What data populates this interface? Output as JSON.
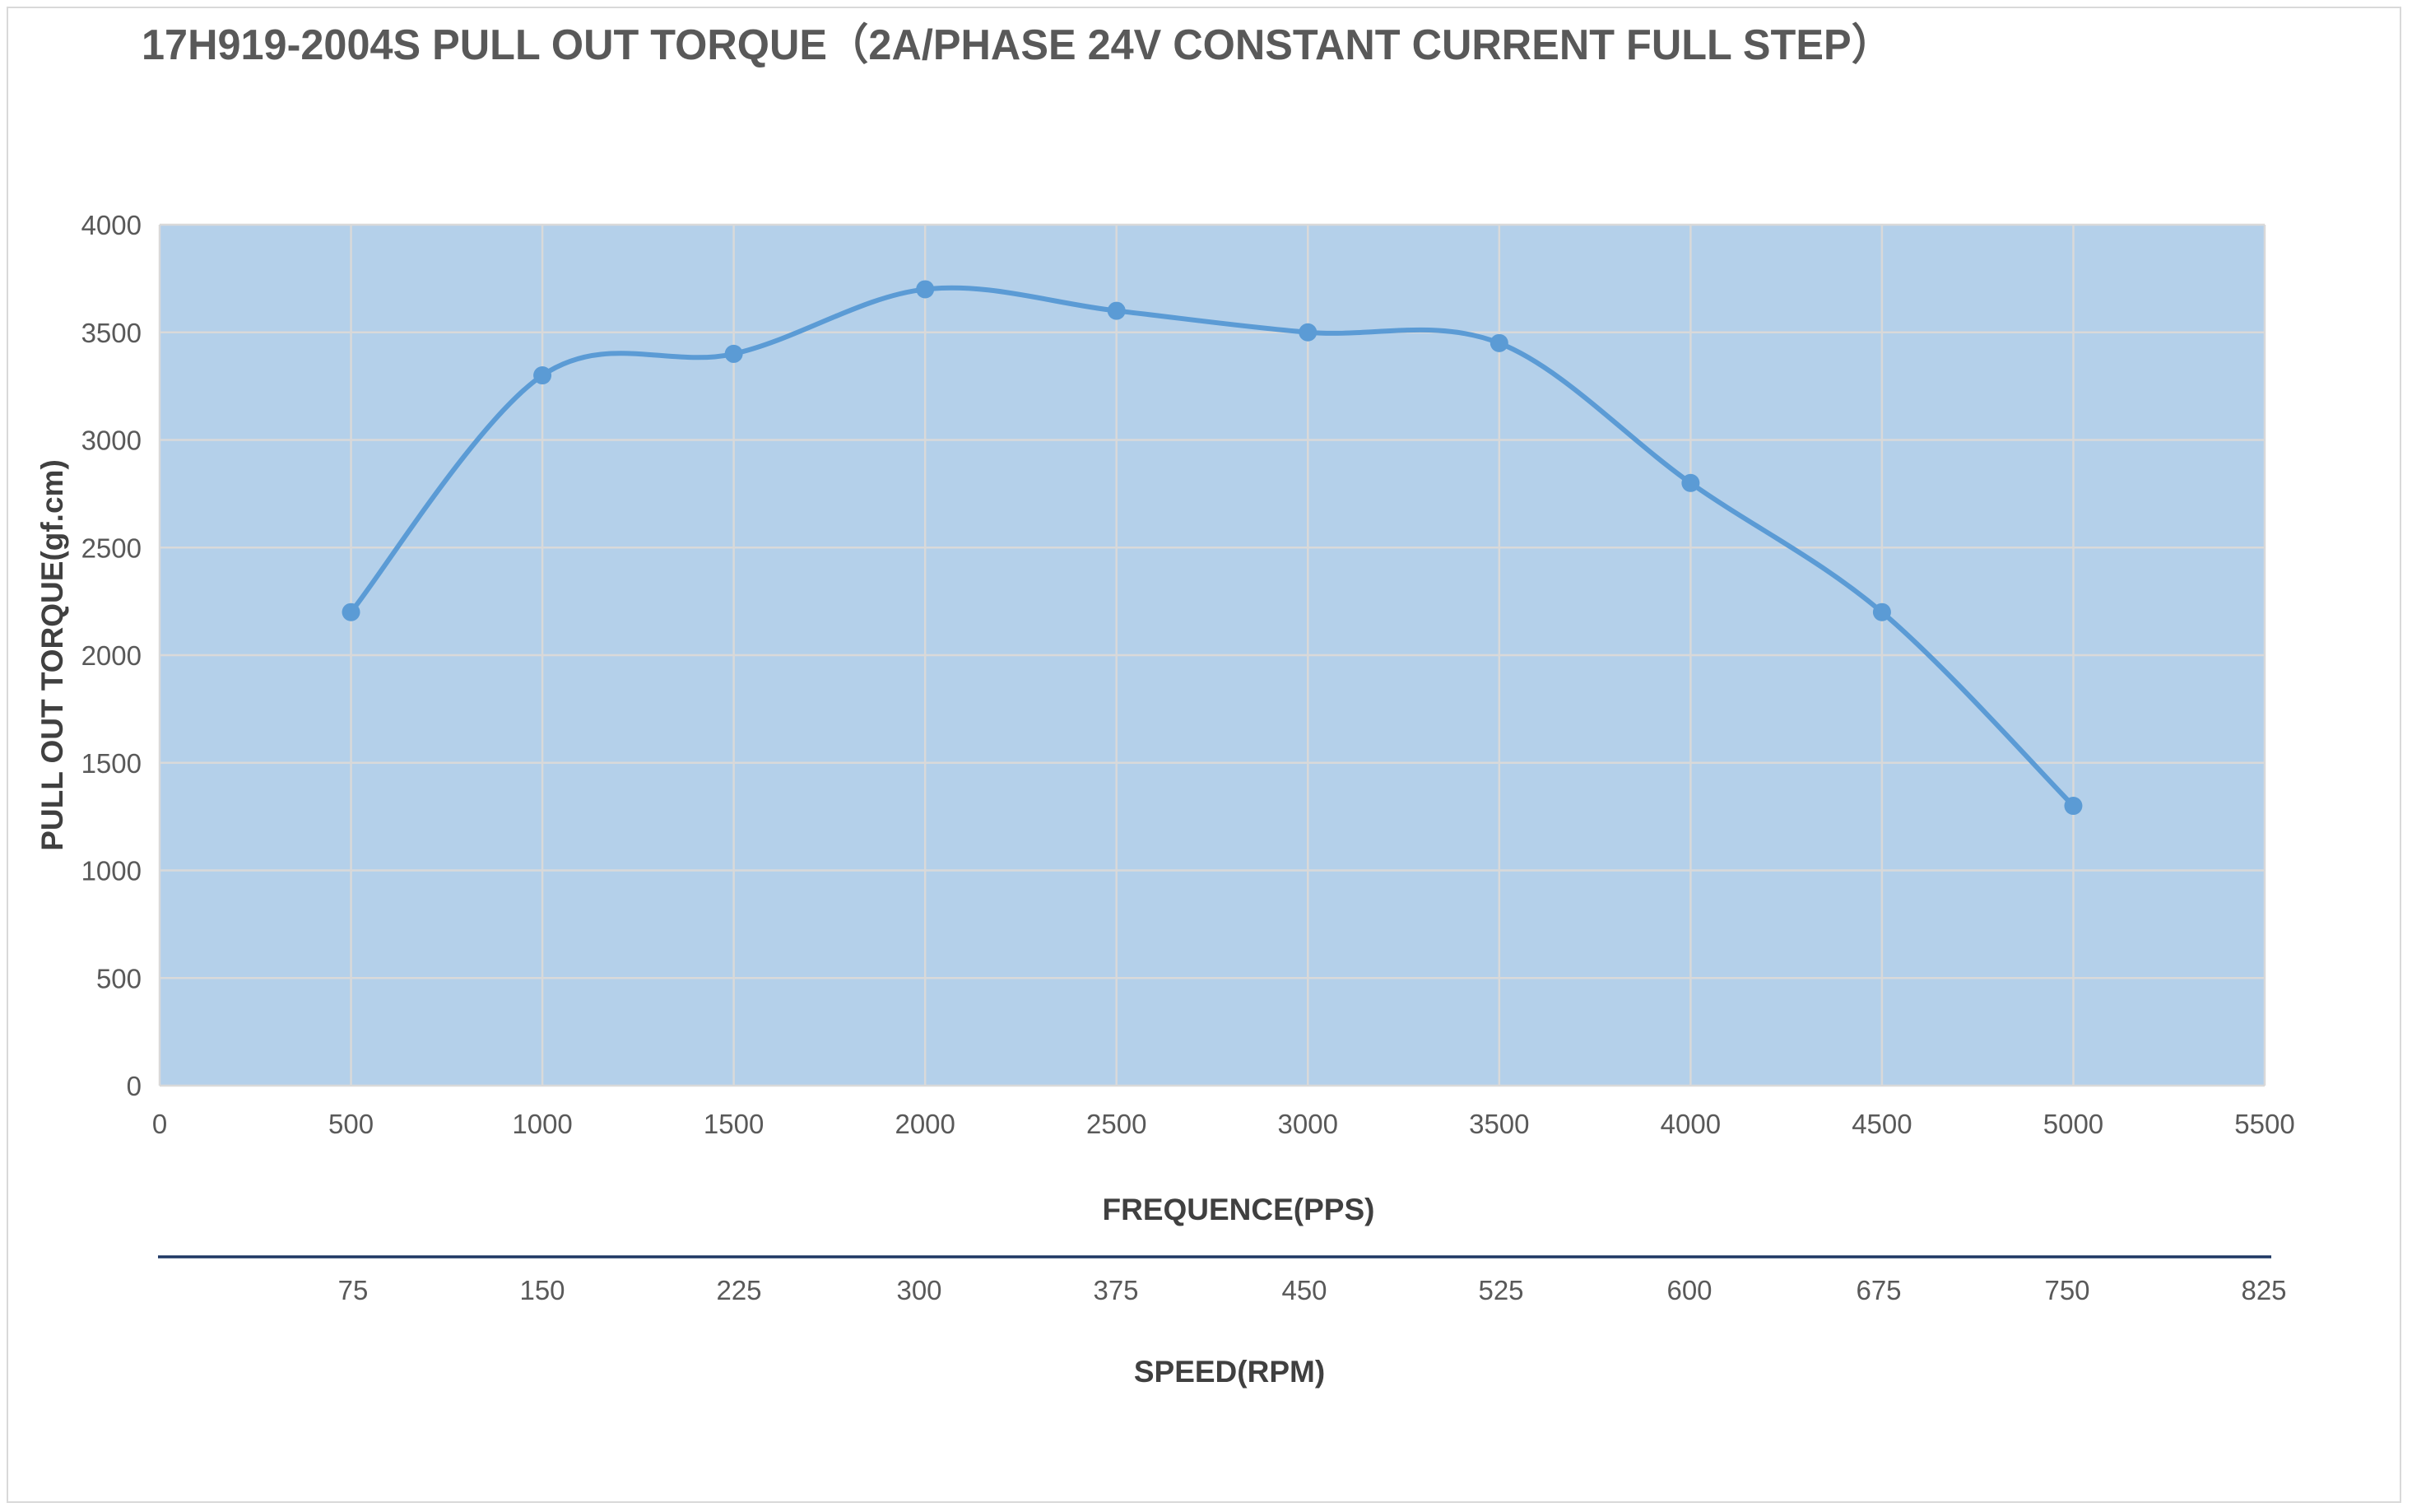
{
  "chart_data": {
    "type": "line",
    "title": "17H919-2004S  PULL OUT TORQUE（2A/PHASE 24V CONSTANT CURRENT    FULL STEP）",
    "xlabel": "FREQUENCE(PPS)",
    "ylabel": "PULL OUT TORQUE(gf.cm)",
    "secondary_xlabel": "SPEED(RPM)",
    "xlim": [
      0,
      5500
    ],
    "ylim": [
      0,
      4000
    ],
    "x_ticks": [
      "0",
      "500",
      "1000",
      "1500",
      "2000",
      "2500",
      "3000",
      "3500",
      "4000",
      "4500",
      "5000",
      "5500"
    ],
    "y_ticks": [
      "0",
      "500",
      "1000",
      "1500",
      "2000",
      "2500",
      "3000",
      "3500",
      "4000"
    ],
    "secondary_x_ticks": [
      "75",
      "150",
      "225",
      "300",
      "375",
      "450",
      "525",
      "600",
      "675",
      "750",
      "825"
    ],
    "grid": true,
    "smooth": true,
    "series": [
      {
        "name": "Pull out torque",
        "x": [
          500,
          1000,
          1500,
          2000,
          2500,
          3000,
          3500,
          4000,
          4500,
          5000
        ],
        "y": [
          2200,
          3300,
          3400,
          3700,
          3600,
          3500,
          3450,
          2800,
          2200,
          1300
        ]
      }
    ],
    "colors": {
      "plot_background": "#b4d0ea",
      "gridline": "#d9d9d9",
      "line": "#5b9bd5",
      "secondary_axis": "#1f3864"
    }
  }
}
